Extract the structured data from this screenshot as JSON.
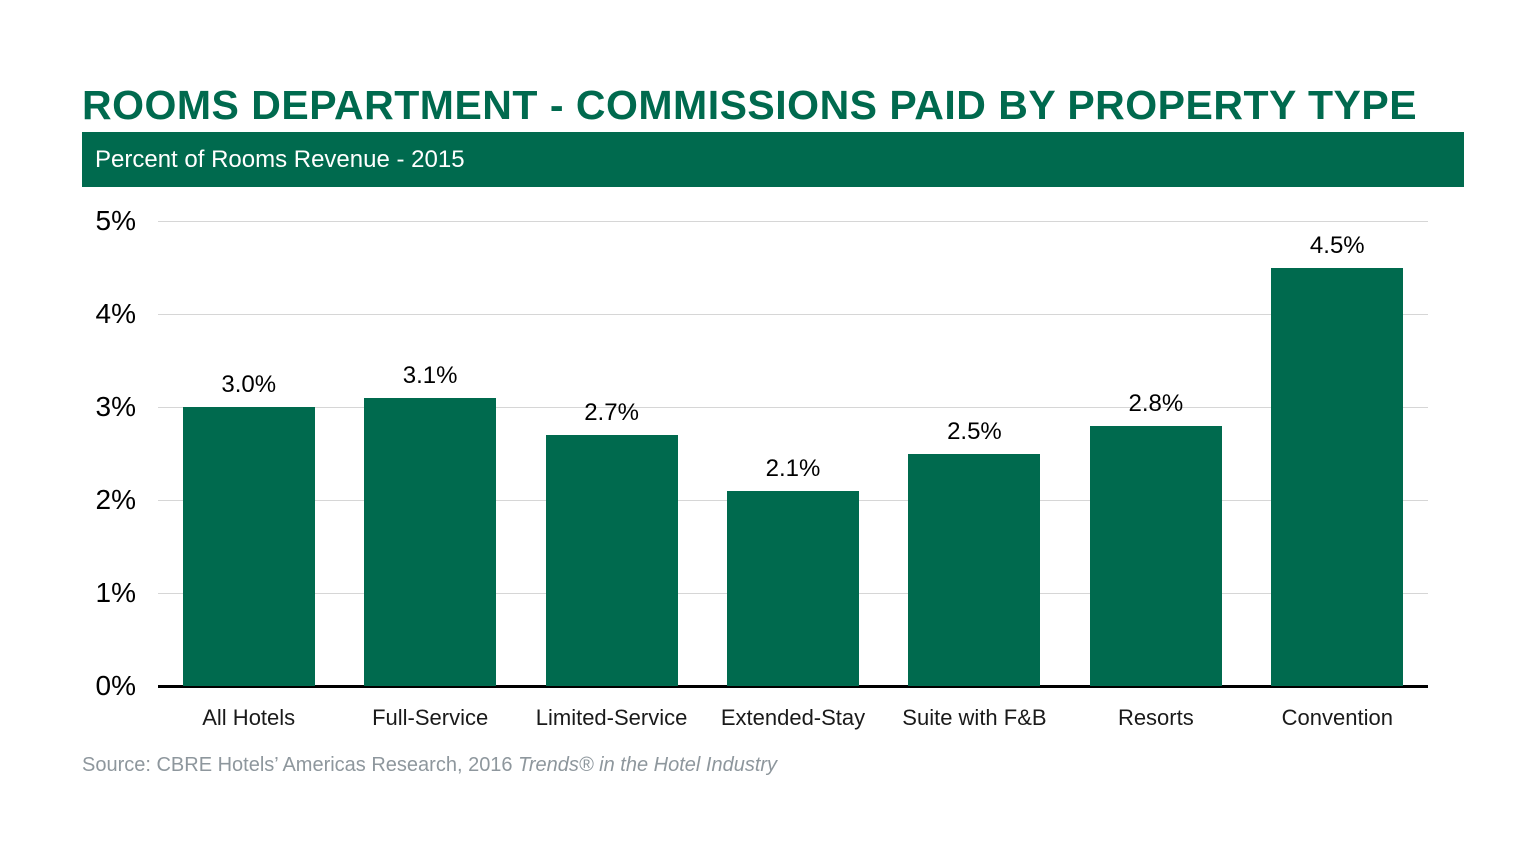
{
  "title": "ROOMS DEPARTMENT - COMMISSIONS PAID BY PROPERTY TYPE",
  "subtitle": "Percent of Rooms Revenue - 2015",
  "source": {
    "prefix": "Source: CBRE Hotels’ Americas Research, 2016 ",
    "italic": "Trends® in the Hotel Industry"
  },
  "colors": {
    "brand_green": "#006A4E",
    "gridline": "#D6D6D6",
    "axis_line": "#000000",
    "label_black": "#000000",
    "source_gray": "#8E979D",
    "banner_text": "#FFFFFF"
  },
  "chart_data": {
    "type": "bar",
    "title": "ROOMS DEPARTMENT - COMMISSIONS PAID BY PROPERTY TYPE",
    "subtitle": "Percent of Rooms Revenue - 2015",
    "categories": [
      "All Hotels",
      "Full-Service",
      "Limited-Service",
      "Extended-Stay",
      "Suite with F&B",
      "Resorts",
      "Convention"
    ],
    "values": [
      3.0,
      3.1,
      2.7,
      2.1,
      2.5,
      2.8,
      4.5
    ],
    "value_labels": [
      "3.0%",
      "3.1%",
      "2.7%",
      "2.1%",
      "2.5%",
      "2.8%",
      "4.5%"
    ],
    "xlabel": "",
    "ylabel": "",
    "ylim": [
      0,
      5
    ],
    "ytick_values": [
      0,
      1,
      2,
      3,
      4,
      5
    ],
    "ytick_labels": [
      "0%",
      "1%",
      "2%",
      "3%",
      "4%",
      "5%"
    ],
    "grid": true,
    "legend": "none",
    "bar_color": "#006A4E"
  }
}
